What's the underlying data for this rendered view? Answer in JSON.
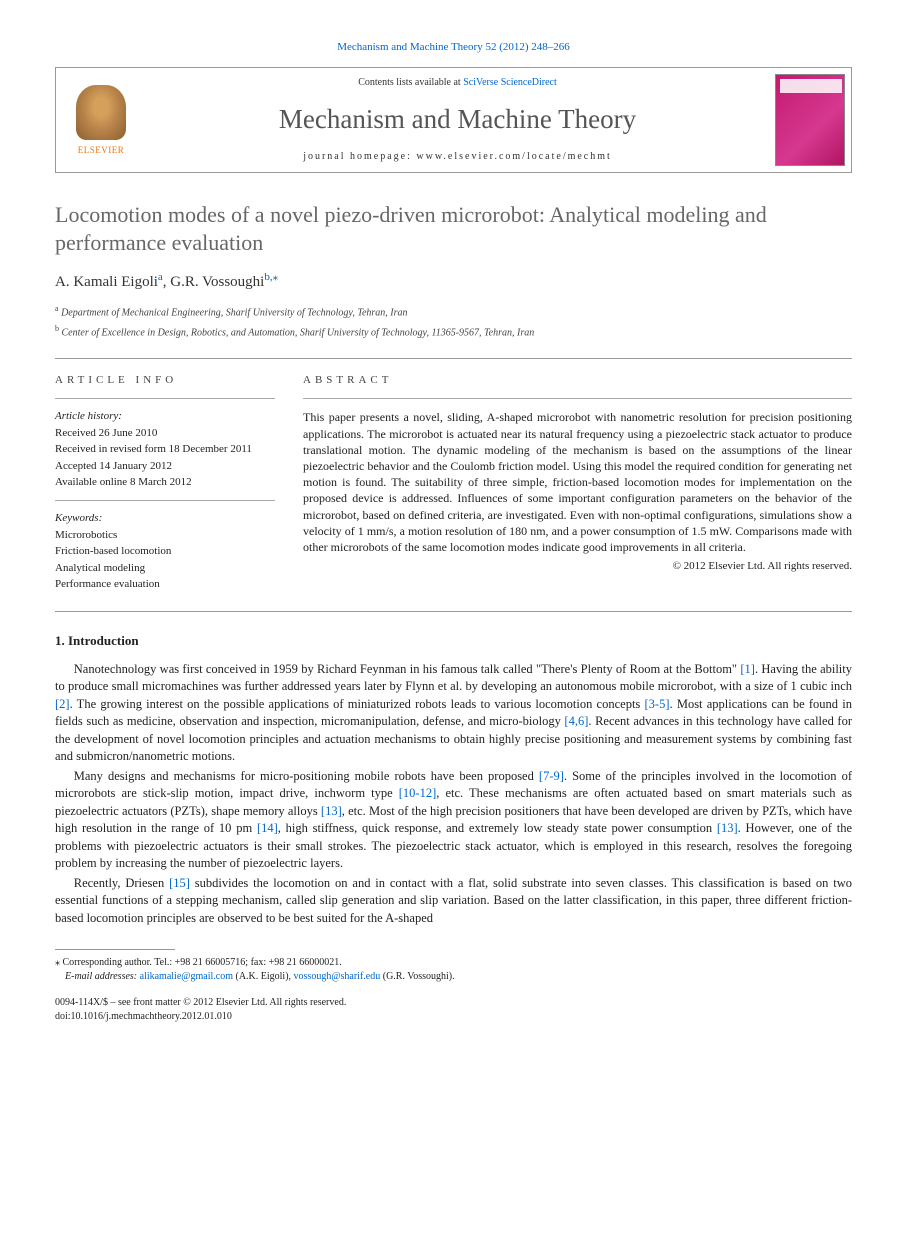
{
  "top_reference": "Mechanism and Machine Theory 52 (2012) 248–266",
  "header": {
    "publisher": "ELSEVIER",
    "contents_prefix": "Contents lists available at ",
    "contents_link": "SciVerse ScienceDirect",
    "journal": "Mechanism and Machine Theory",
    "homepage_label": "journal homepage: ",
    "homepage_url": "www.elsevier.com/locate/mechmt",
    "cover_color": "#c4196f"
  },
  "title": "Locomotion modes of a novel piezo-driven microrobot: Analytical modeling and performance evaluation",
  "authors": {
    "a1_name": "A. Kamali Eigoli",
    "a1_sup": "a",
    "a2_name": "G.R. Vossoughi",
    "a2_sup": "b,",
    "corr_mark": "⁎"
  },
  "affiliations": {
    "a": "Department of Mechanical Engineering, Sharif University of Technology, Tehran, Iran",
    "b": "Center of Excellence in Design, Robotics, and Automation, Sharif University of Technology, 11365-9567, Tehran, Iran"
  },
  "article_info": {
    "heading": "ARTICLE INFO",
    "history_label": "Article history:",
    "received": "Received 26 June 2010",
    "revised": "Received in revised form 18 December 2011",
    "accepted": "Accepted 14 January 2012",
    "online": "Available online 8 March 2012",
    "keywords_label": "Keywords:",
    "kw1": "Microrobotics",
    "kw2": "Friction-based locomotion",
    "kw3": "Analytical modeling",
    "kw4": "Performance evaluation"
  },
  "abstract": {
    "heading": "ABSTRACT",
    "text": "This paper presents a novel, sliding, A-shaped microrobot with nanometric resolution for precision positioning applications. The microrobot is actuated near its natural frequency using a piezoelectric stack actuator to produce translational motion. The dynamic modeling of the mechanism is based on the assumptions of the linear piezoelectric behavior and the Coulomb friction model. Using this model the required condition for generating net motion is found. The suitability of three simple, friction-based locomotion modes for implementation on the proposed device is addressed. Influences of some important configuration parameters on the behavior of the microrobot, based on defined criteria, are investigated. Even with non-optimal configurations, simulations show a velocity of 1 mm/s, a motion resolution of 180 nm, and a power consumption of 1.5 mW. Comparisons made with other microrobots of the same locomotion modes indicate good improvements in all criteria.",
    "copyright": "© 2012 Elsevier Ltd. All rights reserved."
  },
  "intro": {
    "heading": "1. Introduction",
    "p1_a": "Nanotechnology was first conceived in 1959 by Richard Feynman in his famous talk called \"There's Plenty of Room at the Bottom\" ",
    "c1": "[1]",
    "p1_b": ". Having the ability to produce small micromachines was further addressed years later by Flynn et al. by developing an autonomous mobile microrobot, with a size of 1 cubic inch ",
    "c2": "[2]",
    "p1_c": ". The growing interest on the possible applications of miniaturized robots leads to various locomotion concepts ",
    "c3": "[3-5]",
    "p1_d": ". Most applications can be found in fields such as medicine, observation and inspection, micromanipulation, defense, and micro-biology ",
    "c4": "[4,6]",
    "p1_e": ". Recent advances in this technology have called for the development of novel locomotion principles and actuation mechanisms to obtain highly precise positioning and measurement systems by combining fast and submicron/nanometric motions.",
    "p2_a": "Many designs and mechanisms for micro-positioning mobile robots have been proposed ",
    "c5": "[7-9]",
    "p2_b": ". Some of the principles involved in the locomotion of microrobots are stick-slip motion, impact drive, inchworm type ",
    "c6": "[10-12]",
    "p2_c": ", etc. These mechanisms are often actuated based on smart materials such as piezoelectric actuators (PZTs), shape memory alloys ",
    "c7": "[13]",
    "p2_d": ", etc. Most of the high precision positioners that have been developed are driven by PZTs, which have high resolution in the range of 10 pm ",
    "c8": "[14]",
    "p2_e": ", high stiffness, quick response, and extremely low steady state power consumption ",
    "c9": "[13]",
    "p2_f": ". However, one of the problems with piezoelectric actuators is their small strokes. The piezoelectric stack actuator, which is employed in this research, resolves the foregoing problem by increasing the number of piezoelectric layers.",
    "p3_a": "Recently, Driesen ",
    "c10": "[15]",
    "p3_b": " subdivides the locomotion on and in contact with a flat, solid substrate into seven classes. This classification is based on two essential functions of a stepping mechanism, called slip generation and slip variation. Based on the latter classification, in this paper, three different friction-based locomotion principles are observed to be best suited for the A-shaped"
  },
  "footnote": {
    "corr_label": "⁎ Corresponding author. Tel.: +98 21 66005716; fax: +98 21 66000021.",
    "email_label": "E-mail addresses: ",
    "email1": "alikamalie@gmail.com",
    "email1_name": " (A.K. Eigoli), ",
    "email2": "vossough@sharif.edu",
    "email2_name": " (G.R. Vossoughi)."
  },
  "bottom": {
    "issn": "0094-114X/$ – see front matter © 2012 Elsevier Ltd. All rights reserved.",
    "doi": "doi:10.1016/j.mechmachtheory.2012.01.010"
  }
}
